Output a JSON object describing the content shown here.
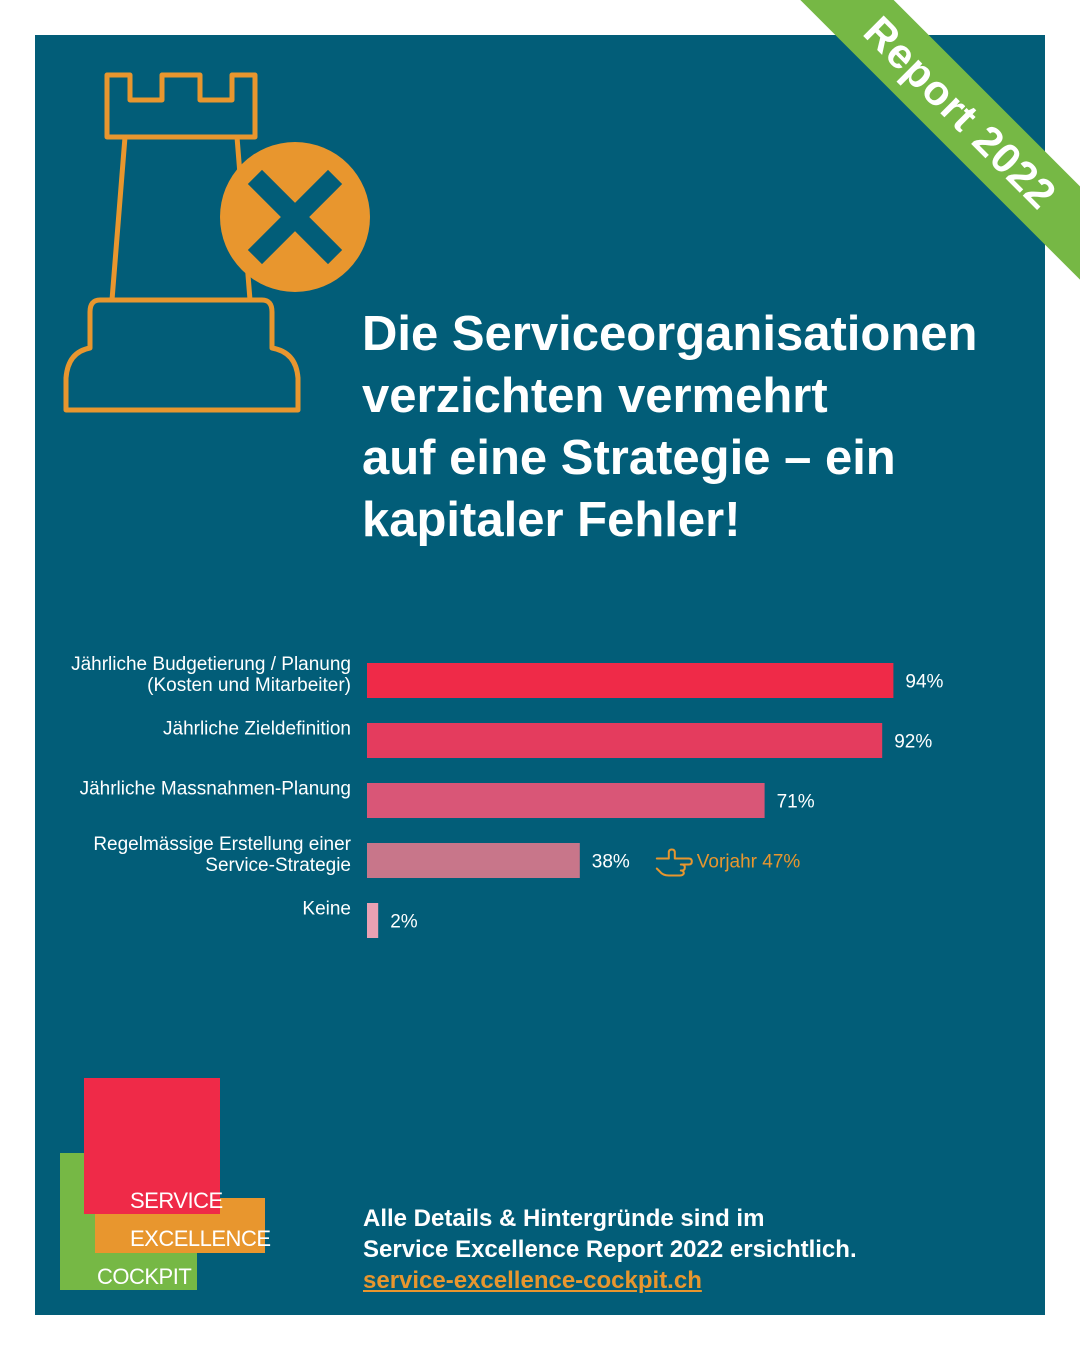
{
  "badge": "Report 2022",
  "headline": {
    "lines": [
      "Die Serviceorganisationen",
      "verzichten vermehrt",
      "auf eine Strategie – ein",
      "kapitaler Fehler!"
    ]
  },
  "icons": {
    "hero": "chess-rook-icon",
    "cross": "close-circle-icon",
    "pointer": "pointing-hand-icon"
  },
  "chart_data": {
    "type": "bar",
    "orientation": "horizontal",
    "categories": [
      [
        "Jährliche Budgetierung / Planung",
        "(Kosten und Mitarbeiter)"
      ],
      [
        "Jährliche Zieldefinition"
      ],
      [
        "Jährliche Massnahmen-Planung"
      ],
      [
        "Regelmässige Erstellung einer",
        "Service-Strategie"
      ],
      [
        "Keine"
      ]
    ],
    "values": [
      94,
      92,
      71,
      38,
      2
    ],
    "value_labels": [
      "94%",
      "92%",
      "71%",
      "38%",
      "2%"
    ],
    "colors": [
      "#ef2a48",
      "#e43c5e",
      "#d95677",
      "#c8768a",
      "#eaa1b3"
    ],
    "xlim": [
      0,
      100
    ],
    "grid": false,
    "annotation": {
      "category_index": 3,
      "text": "Vorjahr 47%",
      "color": "#e8962e"
    }
  },
  "logo": {
    "line1": "SERVICE",
    "line2": "EXCELLENCE",
    "line3": "COCKPIT"
  },
  "footer": {
    "line1": "Alle Details & Hintergründe sind im",
    "line2": "Service Excellence Report 2022 ersichtlich.",
    "link": "service-excellence-cockpit.ch"
  },
  "colors": {
    "background": "#025d78",
    "accent_orange": "#e8962e",
    "accent_green": "#76b845",
    "accent_red": "#ef2a48"
  }
}
